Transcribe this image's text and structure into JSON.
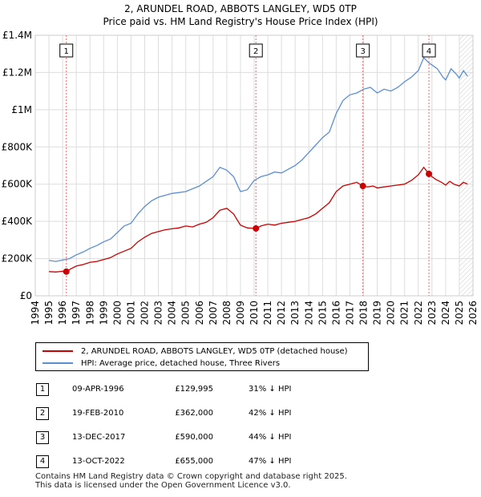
{
  "title": "2, ARUNDEL ROAD, ABBOTS LANGLEY, WD5 0TP",
  "subtitle": "Price paid vs. HM Land Registry's House Price Index (HPI)",
  "chart_data": {
    "type": "line",
    "y_ticks": [
      "£0",
      "£200K",
      "£400K",
      "£600K",
      "£800K",
      "£1M",
      "£1.2M",
      "£1.4M"
    ],
    "ylim": [
      0,
      1400000
    ],
    "xlim": [
      1994,
      2026
    ],
    "x_ticks": [
      "1994",
      "1995",
      "1996",
      "1997",
      "1998",
      "1999",
      "2000",
      "2001",
      "2002",
      "2003",
      "2004",
      "2005",
      "2006",
      "2007",
      "2008",
      "2009",
      "2010",
      "2011",
      "2012",
      "2013",
      "2014",
      "2015",
      "2016",
      "2017",
      "2018",
      "2019",
      "2020",
      "2021",
      "2022",
      "2023",
      "2024",
      "2025",
      "2026"
    ],
    "grid": true,
    "hatched_after": 2025.0,
    "series": [
      {
        "name": "2, ARUNDEL ROAD, ABBOTS LANGLEY, WD5 0TP (detached house)",
        "color": "#cc0000",
        "x": [
          1995.0,
          1995.5,
          1996.0,
          1996.27,
          1996.6,
          1997.0,
          1997.5,
          1998.0,
          1998.5,
          1999.0,
          1999.5,
          2000.0,
          2000.5,
          2001.0,
          2001.5,
          2002.0,
          2002.5,
          2003.0,
          2003.5,
          2004.0,
          2004.5,
          2005.0,
          2005.5,
          2006.0,
          2006.5,
          2007.0,
          2007.5,
          2008.0,
          2008.5,
          2009.0,
          2009.5,
          2010.13,
          2010.5,
          2011.0,
          2011.5,
          2012.0,
          2012.5,
          2013.0,
          2013.5,
          2014.0,
          2014.5,
          2015.0,
          2015.5,
          2016.0,
          2016.5,
          2017.0,
          2017.5,
          2017.95,
          2018.3,
          2018.7,
          2019.0,
          2019.5,
          2020.0,
          2020.5,
          2021.0,
          2021.5,
          2022.0,
          2022.4,
          2022.78,
          2023.0,
          2023.3,
          2023.7,
          2024.0,
          2024.3,
          2024.6,
          2025.0,
          2025.3,
          2025.6
        ],
        "values": [
          130000,
          128000,
          132000,
          129995,
          145000,
          160000,
          168000,
          180000,
          185000,
          195000,
          205000,
          225000,
          240000,
          255000,
          290000,
          315000,
          335000,
          345000,
          355000,
          360000,
          365000,
          375000,
          370000,
          385000,
          395000,
          420000,
          460000,
          470000,
          440000,
          380000,
          365000,
          362000,
          375000,
          385000,
          380000,
          390000,
          395000,
          400000,
          410000,
          420000,
          440000,
          470000,
          500000,
          560000,
          590000,
          600000,
          610000,
          590000,
          585000,
          590000,
          580000,
          585000,
          590000,
          595000,
          600000,
          620000,
          650000,
          690000,
          655000,
          640000,
          625000,
          610000,
          595000,
          615000,
          600000,
          590000,
          610000,
          600000
        ]
      },
      {
        "name": "HPI: Average price, detached house, Three Rivers",
        "color": "#5b8fd4",
        "x": [
          1995.0,
          1995.5,
          1996.0,
          1996.5,
          1997.0,
          1997.5,
          1998.0,
          1998.5,
          1999.0,
          1999.5,
          2000.0,
          2000.5,
          2001.0,
          2001.5,
          2002.0,
          2002.5,
          2003.0,
          2003.5,
          2004.0,
          2004.5,
          2005.0,
          2005.5,
          2006.0,
          2006.5,
          2007.0,
          2007.5,
          2008.0,
          2008.5,
          2009.0,
          2009.5,
          2010.0,
          2010.5,
          2011.0,
          2011.5,
          2012.0,
          2012.5,
          2013.0,
          2013.5,
          2014.0,
          2014.5,
          2015.0,
          2015.5,
          2016.0,
          2016.5,
          2017.0,
          2017.5,
          2018.0,
          2018.5,
          2019.0,
          2019.5,
          2020.0,
          2020.5,
          2021.0,
          2021.5,
          2022.0,
          2022.4,
          2022.8,
          2023.0,
          2023.4,
          2023.8,
          2024.0,
          2024.4,
          2024.8,
          2025.0,
          2025.3,
          2025.6
        ],
        "values": [
          190000,
          185000,
          192000,
          200000,
          220000,
          235000,
          255000,
          270000,
          290000,
          305000,
          340000,
          375000,
          390000,
          440000,
          480000,
          510000,
          530000,
          540000,
          550000,
          555000,
          560000,
          575000,
          590000,
          615000,
          640000,
          690000,
          675000,
          640000,
          560000,
          570000,
          620000,
          640000,
          650000,
          665000,
          660000,
          680000,
          700000,
          730000,
          770000,
          810000,
          850000,
          880000,
          980000,
          1050000,
          1080000,
          1090000,
          1110000,
          1120000,
          1090000,
          1110000,
          1100000,
          1120000,
          1150000,
          1175000,
          1210000,
          1280000,
          1250000,
          1240000,
          1220000,
          1175000,
          1160000,
          1220000,
          1190000,
          1170000,
          1210000,
          1180000
        ]
      }
    ],
    "markers": [
      {
        "label": "1",
        "x": 1996.27,
        "y": 129995
      },
      {
        "label": "2",
        "x": 2010.13,
        "y": 362000
      },
      {
        "label": "3",
        "x": 2017.95,
        "y": 590000
      },
      {
        "label": "4",
        "x": 2022.78,
        "y": 655000
      }
    ]
  },
  "legend": {
    "property": "2, ARUNDEL ROAD, ABBOTS LANGLEY, WD5 0TP (detached house)",
    "hpi": "HPI: Average price, detached house, Three Rivers"
  },
  "transactions": [
    {
      "num": "1",
      "date": "09-APR-1996",
      "price": "£129,995",
      "hpi": "31% ↓ HPI"
    },
    {
      "num": "2",
      "date": "19-FEB-2010",
      "price": "£362,000",
      "hpi": "42% ↓ HPI"
    },
    {
      "num": "3",
      "date": "13-DEC-2017",
      "price": "£590,000",
      "hpi": "44% ↓ HPI"
    },
    {
      "num": "4",
      "date": "13-OCT-2022",
      "price": "£655,000",
      "hpi": "47% ↓ HPI"
    }
  ],
  "footer": "Contains HM Land Registry data © Crown copyright and database right 2025.\nThis data is licensed under the Open Government Licence v3.0."
}
